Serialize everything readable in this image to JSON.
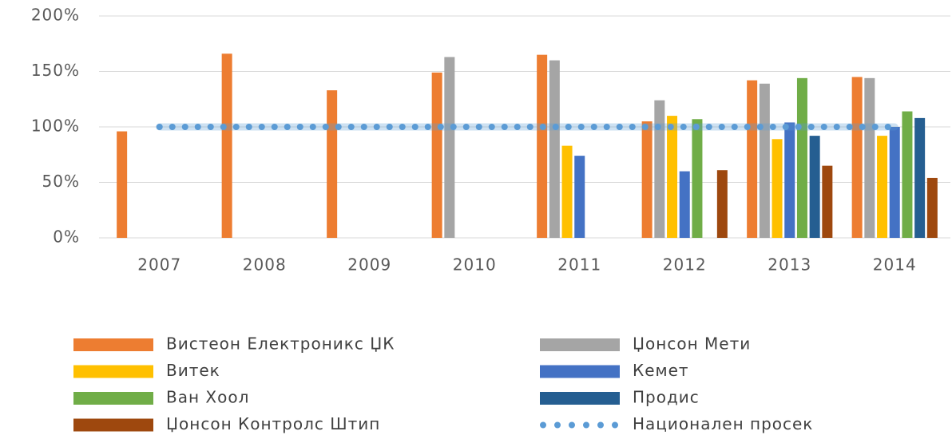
{
  "chart_data": {
    "type": "bar",
    "categories": [
      "2007",
      "2008",
      "2009",
      "2010",
      "2011",
      "2012",
      "2013",
      "2014"
    ],
    "series": [
      {
        "name": "Вистеон Електроникс ЏК",
        "color": "#ed7d31",
        "values": [
          96,
          166,
          133,
          149,
          165,
          105,
          142,
          145
        ]
      },
      {
        "name": "Џонсон Мети",
        "color": "#a5a5a5",
        "values": [
          null,
          null,
          null,
          163,
          160,
          124,
          139,
          144
        ]
      },
      {
        "name": "Витек",
        "color": "#ffc000",
        "values": [
          null,
          null,
          null,
          null,
          83,
          110,
          89,
          92
        ]
      },
      {
        "name": "Кемет",
        "color": "#4472c4",
        "values": [
          null,
          null,
          null,
          null,
          74,
          60,
          104,
          100
        ]
      },
      {
        "name": "Ван Хоол",
        "color": "#70ad47",
        "values": [
          null,
          null,
          null,
          null,
          null,
          107,
          144,
          114
        ]
      },
      {
        "name": "Продис",
        "color": "#255e91",
        "values": [
          null,
          null,
          null,
          null,
          null,
          null,
          92,
          108
        ]
      },
      {
        "name": "Џонсон Контролс Штип",
        "color": "#9e480e",
        "values": [
          null,
          null,
          null,
          null,
          null,
          61,
          65,
          54
        ]
      },
      {
        "name": "Национален просек",
        "color": "#5b9bd5",
        "type": "line",
        "values": [
          100,
          100,
          100,
          100,
          100,
          100,
          100,
          100
        ]
      }
    ],
    "ylim": [
      0,
      200
    ],
    "yticks": [
      {
        "value": 0,
        "label": "0%"
      },
      {
        "value": 50,
        "label": "50%"
      },
      {
        "value": 100,
        "label": "100%"
      },
      {
        "value": 150,
        "label": "150%"
      },
      {
        "value": 200,
        "label": "200%"
      }
    ],
    "grid": true,
    "legend": "bottom"
  }
}
